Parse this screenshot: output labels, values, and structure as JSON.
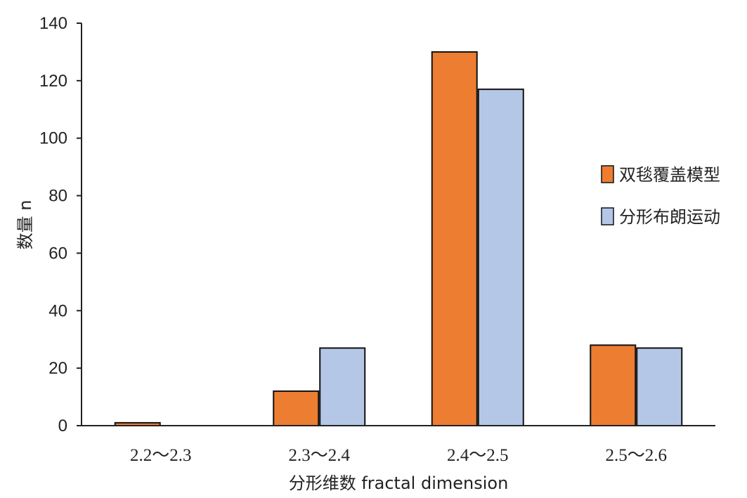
{
  "chart_data": {
    "type": "bar",
    "title": "",
    "xlabel": "分形维数 fractal dimension",
    "ylabel": "数量 n",
    "categories": [
      "2.2～2.3",
      "2.3～2.4",
      "2.4～2.5",
      "2.5～2.6"
    ],
    "series": [
      {
        "name": "双毯覆盖模型",
        "values": [
          1,
          12,
          130,
          28
        ],
        "color": "#ED7D31"
      },
      {
        "name": "分形布朗运动",
        "values": [
          0,
          27,
          117,
          27
        ],
        "color": "#B4C7E7"
      }
    ],
    "ylim": [
      0,
      140
    ],
    "yticks": [
      0,
      20,
      40,
      60,
      80,
      100,
      120,
      140
    ],
    "grid": false,
    "legend_position": "right"
  }
}
